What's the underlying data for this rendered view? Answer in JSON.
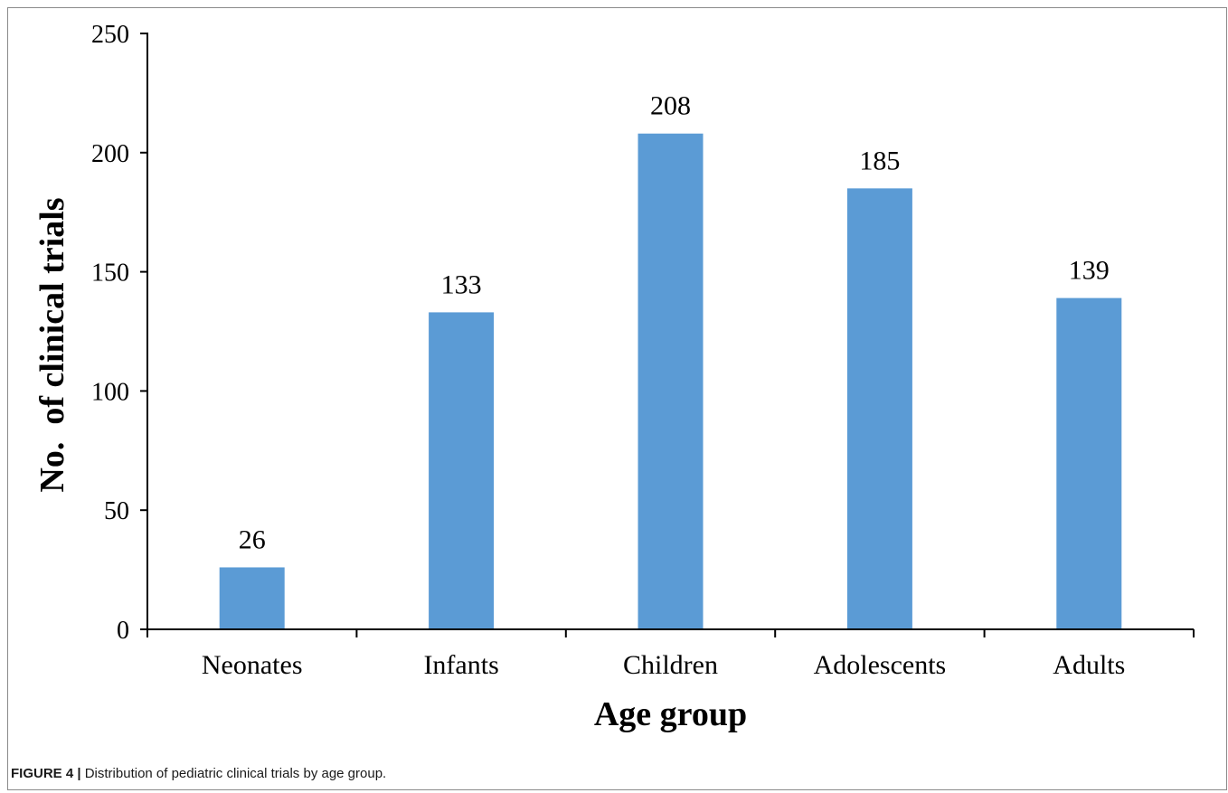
{
  "caption": {
    "label": "FIGURE 4 |",
    "text": "Distribution of pediatric clinical trials by age group."
  },
  "colors": {
    "bar": "#5b9bd5",
    "axis": "#000000"
  },
  "chart_data": {
    "type": "bar",
    "categories": [
      "Neonates",
      "Infants",
      "Children",
      "Adolescents",
      "Adults"
    ],
    "values": [
      26,
      133,
      208,
      185,
      139
    ],
    "data_labels": [
      "26",
      "133",
      "208",
      "185",
      "139"
    ],
    "xlabel": "Age group",
    "ylabel": "No.  of clinical trials",
    "ylim": [
      0,
      250
    ],
    "yticks": [
      "0",
      "50",
      "100",
      "150",
      "200",
      "250"
    ],
    "grid": false
  }
}
